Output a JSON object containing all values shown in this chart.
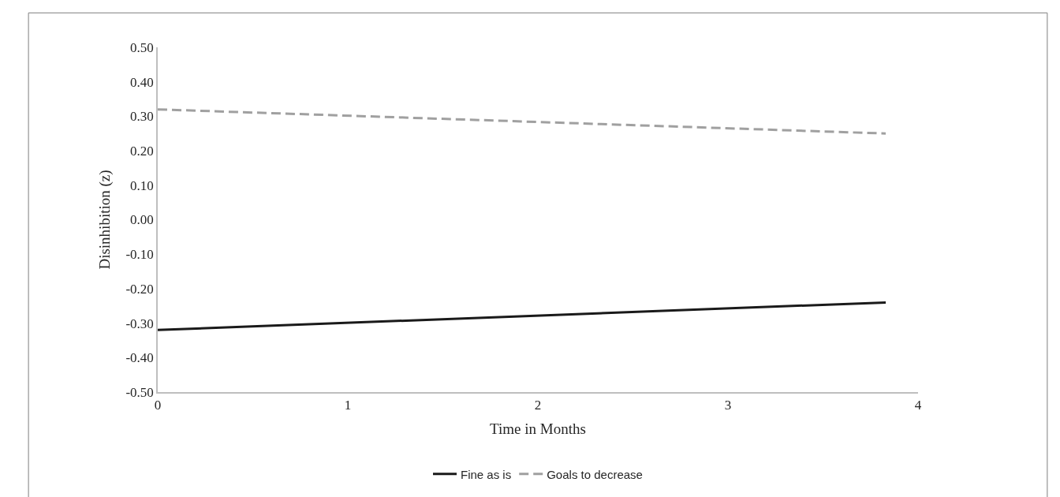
{
  "chart_data": {
    "type": "line",
    "xlabel": "Time in Months",
    "ylabel": "Disinhibition (z)",
    "series": [
      {
        "name": "Fine as is",
        "color": "#1a1a1a",
        "values": [
          -0.32,
          -0.24
        ],
        "line_style": "solid"
      },
      {
        "name": "Goals to decrease",
        "color": "#a0a0a0",
        "values": [
          0.32,
          0.25
        ],
        "line_style": "dashed"
      }
    ],
    "x": [
      0,
      3.83
    ],
    "xlim": [
      0,
      4
    ],
    "xticks": [
      0,
      1,
      2,
      3,
      4
    ],
    "ylim": [
      -0.5,
      0.5
    ],
    "yticks": [
      {
        "value": 0.5,
        "label": "0.50"
      },
      {
        "value": 0.4,
        "label": "0.40"
      },
      {
        "value": 0.3,
        "label": "0.30"
      },
      {
        "value": 0.2,
        "label": "0.20"
      },
      {
        "value": 0.1,
        "label": "0.10"
      },
      {
        "value": 0,
        "label": "0.00"
      },
      {
        "value": -0.1,
        "label": "-0.10"
      },
      {
        "value": -0.2,
        "label": "-0.20"
      },
      {
        "value": -0.3,
        "label": "-0.30"
      },
      {
        "value": -0.4,
        "label": "-0.40"
      },
      {
        "value": -0.5,
        "label": "-0.50"
      }
    ],
    "grid": false,
    "legend": "bottom",
    "marker": "none"
  }
}
